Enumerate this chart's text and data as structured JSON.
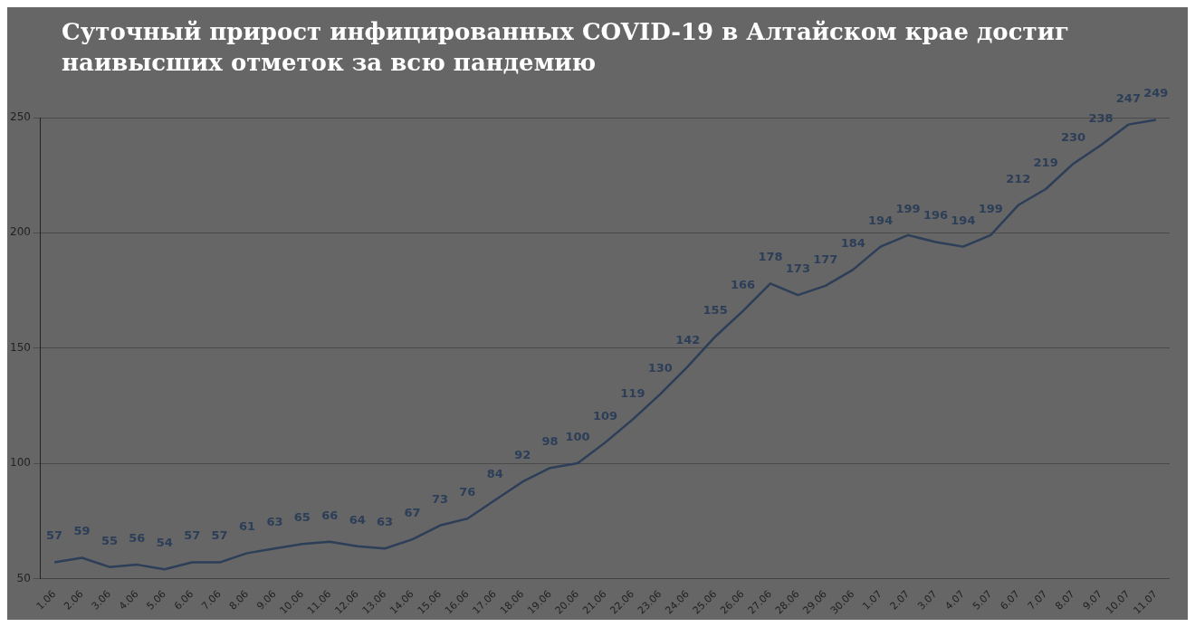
{
  "chart_data": {
    "type": "line",
    "title": "Суточный прирост инфицированных COVID-19 в Алтайском крае достиг наивысших отметок за всю пандемию",
    "categories": [
      "1.06",
      "2.06",
      "3.06",
      "4.06",
      "5.06",
      "6.06",
      "7.06",
      "8.06",
      "9.06",
      "10.06",
      "11.06",
      "12.06",
      "13.06",
      "14.06",
      "15.06",
      "16.06",
      "17.06",
      "18.06",
      "19.06",
      "20.06",
      "21.06",
      "22.06",
      "23.06",
      "24.06",
      "25.06",
      "26.06",
      "27.06",
      "28.06",
      "29.06",
      "30.06",
      "1.07",
      "2.07",
      "3.07",
      "4.07",
      "5.07",
      "6.07",
      "7.07",
      "8.07",
      "9.07",
      "10.07",
      "11.07"
    ],
    "series": [
      {
        "color": "#2c3e58",
        "values": [
          57,
          59,
          55,
          56,
          54,
          57,
          57,
          61,
          63,
          65,
          66,
          64,
          63,
          67,
          73,
          76,
          84,
          92,
          98,
          100,
          109,
          119,
          130,
          142,
          155,
          166,
          178,
          173,
          177,
          184,
          194,
          199,
          196,
          194,
          199,
          212,
          219,
          230,
          238,
          247,
          249
        ]
      }
    ],
    "ylim": [
      50,
      250
    ],
    "yticks": [
      50,
      100,
      150,
      200,
      250
    ],
    "grid": "y",
    "legend": false,
    "marker": "none",
    "line_style": "solid",
    "data_labels": true
  }
}
